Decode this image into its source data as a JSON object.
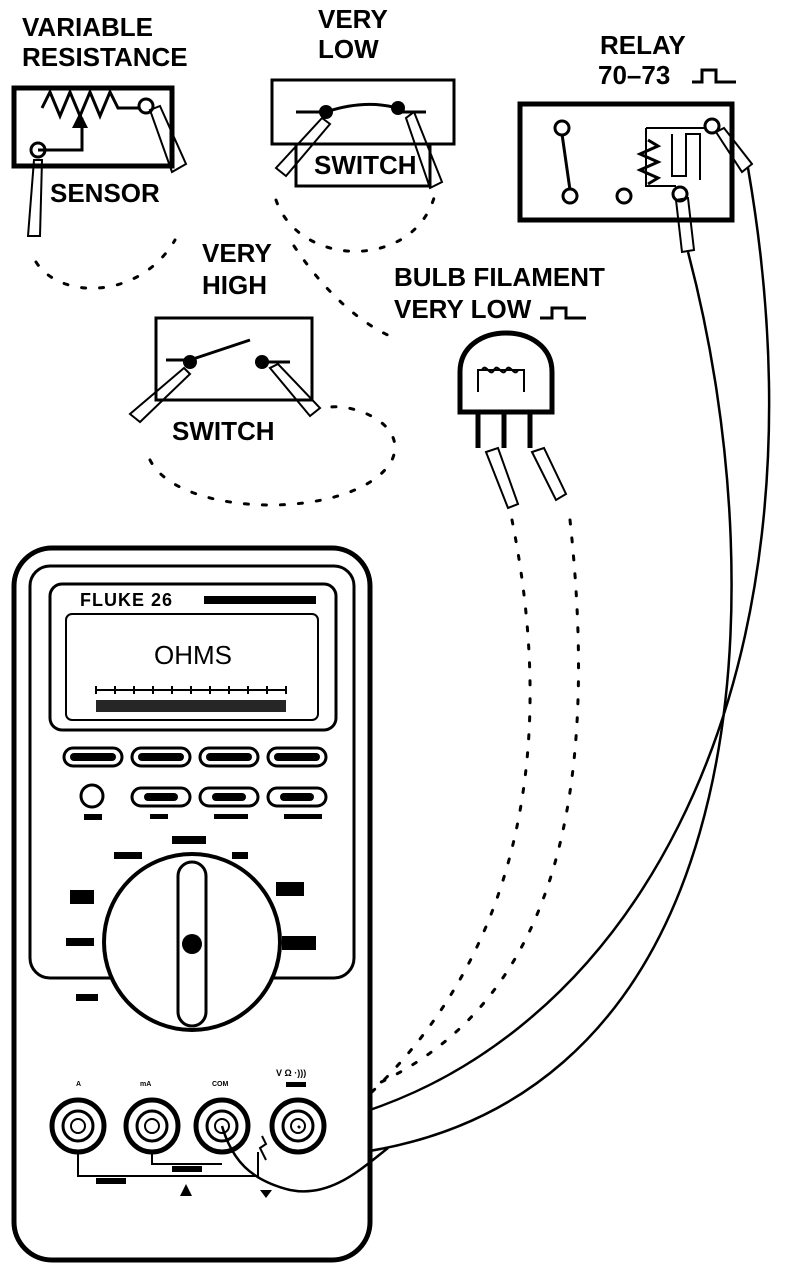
{
  "labels": {
    "variable_resistance_line1": "VARIABLE",
    "variable_resistance_line2": "RESISTANCE",
    "sensor": "SENSOR",
    "very_low_line1": "VERY",
    "very_low_line2": "LOW",
    "switch_top": "SWITCH",
    "relay_line1": "RELAY",
    "relay_line2": "70–73",
    "very_high_line1": "VERY",
    "very_high_line2": "HIGH",
    "switch_bottom": "SWITCH",
    "bulb_line1": "BULB FILAMENT",
    "bulb_line2": "VERY  LOW"
  },
  "meter": {
    "brand": "FLUKE 26",
    "display_text": "OHMS",
    "dial_position": "OHMS",
    "jack_labels": [
      "A",
      "mA",
      "COM",
      "V Ω ·)))"
    ],
    "selected_jacks": [
      "COM",
      "V Ω"
    ]
  },
  "colors": {
    "ink": "#000000",
    "paper": "#ffffff"
  }
}
